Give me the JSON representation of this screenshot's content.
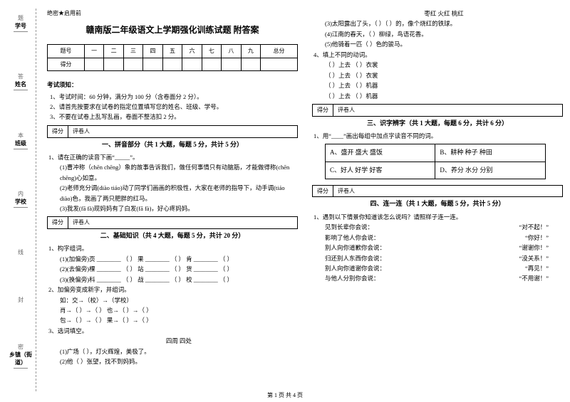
{
  "side": {
    "items": [
      {
        "label": "学号",
        "sym": "题"
      },
      {
        "label": "姓名",
        "sym": "答"
      },
      {
        "label": "班级",
        "sym": "本"
      },
      {
        "label": "学校",
        "sym": "内"
      },
      {
        "label": "",
        "sym": "线"
      },
      {
        "label": "",
        "sym": "封"
      },
      {
        "label": "乡镇（街道）",
        "sym": "密"
      }
    ]
  },
  "header_mark": "绝密★启用前",
  "title": "赣南版二年级语文上学期强化训练试题 附答案",
  "score_table": {
    "row1": [
      "题号",
      "一",
      "二",
      "三",
      "四",
      "五",
      "六",
      "七",
      "八",
      "九",
      "总分"
    ],
    "row2": [
      "得分",
      "",
      "",
      "",
      "",
      "",
      "",
      "",
      "",
      "",
      ""
    ]
  },
  "notice": {
    "head": "考试须知：",
    "items": [
      "1、考试时间：60 分钟，满分为 100 分（含卷面分 2 分）。",
      "2、请首先按要求在试卷的指定位置填写您的姓名、班级、学号。",
      "3、不要在试卷上乱写乱画，卷面不整洁扣 2 分。"
    ]
  },
  "rater": {
    "c1": "得分",
    "c2": "评卷人"
  },
  "s1": {
    "title": "一、拼音部分（共 1 大题，每题 5 分，共计 5 分）",
    "q": "1、请在正确的读音下画“_____”。",
    "lines": [
      "(1)曹冲称（chēn   chēng）象的故事告诉我们，做任何事情只有动脑筋，才能做得称(chēn   chēng)心如意。",
      "(2)老师充分调(diào    tiáo)动了同学们画画的积极性，大家在老师的指导下，动手调(tiáo   diào)色，我画了两只肥胖的红马。",
      "(3)我发(fā    fà)现妈妈有了白发(fā    fà)，好心疼妈妈。"
    ]
  },
  "s2": {
    "title": "二、基础知识（共 4 大题，每题 5 分，共计 20 分）",
    "q1": "1、构字组词。",
    "q1_lines": [
      "(1)(加偏旁)页 ________ （    ） 果 ________ （    ）  肯 ________ （    ）",
      "(2)(去偏旁)棵 ________ （    ） 站 ________ （    ）  货 ________ （    ）",
      "(3)(换偏旁)科 ________ （    ） 战 ________ （    ）  校 ________ （    ）"
    ],
    "q2": "2、加偏旁变成新字，并组词。",
    "q2_lines": [
      "如：交→（校）→（学校）",
      "肖→（     ）→（          ）     也→（     ）→（          ）",
      "包→（     ）→（          ）     果→（     ）→（          ）"
    ],
    "q3": "3、选词填空。",
    "q3_sub": "四周    四处",
    "q3_lines": [
      "(1)广场（     ），灯火辉煌，美极了。",
      "(2)他（     ）张望，找不到妈妈。"
    ]
  },
  "right_top": {
    "words": "枣红    火红    桃红",
    "lines": [
      "(3)太阳露出了头，（          ）（          ）的，像个烧红的铁球。",
      "(4)江南的春天，（          ）柳绿，鸟语花香。",
      "(5)他骑着一匹（          ）色的骏马。"
    ],
    "q4": "4、填上不同的动词。",
    "q4_lines": [
      "（          ）上去           （          ）衣裳",
      "（          ）上去           （          ）衣裳",
      "（          ）上去           （          ）机器",
      "（          ）上去           （          ）机器"
    ]
  },
  "s3": {
    "title": "三、识字辨字（共 1 大题，每题 6 分，共计 6 分）",
    "q": "1、用“____”画出每组中加点字读音不同的词。",
    "rows": [
      [
        "A、盛开   盛大   盛饭",
        "B、耕种   种子   种田"
      ],
      [
        "C、好人   好学   好客",
        "D、养分   水分   分别"
      ]
    ]
  },
  "s4": {
    "title": "四、连一连（共 1 大题，每题 5 分，共计 5 分）",
    "q": "1、遇到以下情景你知道该怎么说吗？请照样子连一连。",
    "pairs": [
      [
        "见到长辈你会说：",
        "“对不起！”"
      ],
      [
        "影响了他人你会说：",
        "“你好！”"
      ],
      [
        "别人向你道歉你会说：",
        "“谢谢你！”"
      ],
      [
        "归还别人东西你会说：",
        "“没关系！”"
      ],
      [
        "别人向你道谢你会说：",
        "“再见！”"
      ],
      [
        "与他人分别你会说：",
        "“不用谢！”"
      ]
    ]
  },
  "footer": "第 1 页 共 4 页"
}
